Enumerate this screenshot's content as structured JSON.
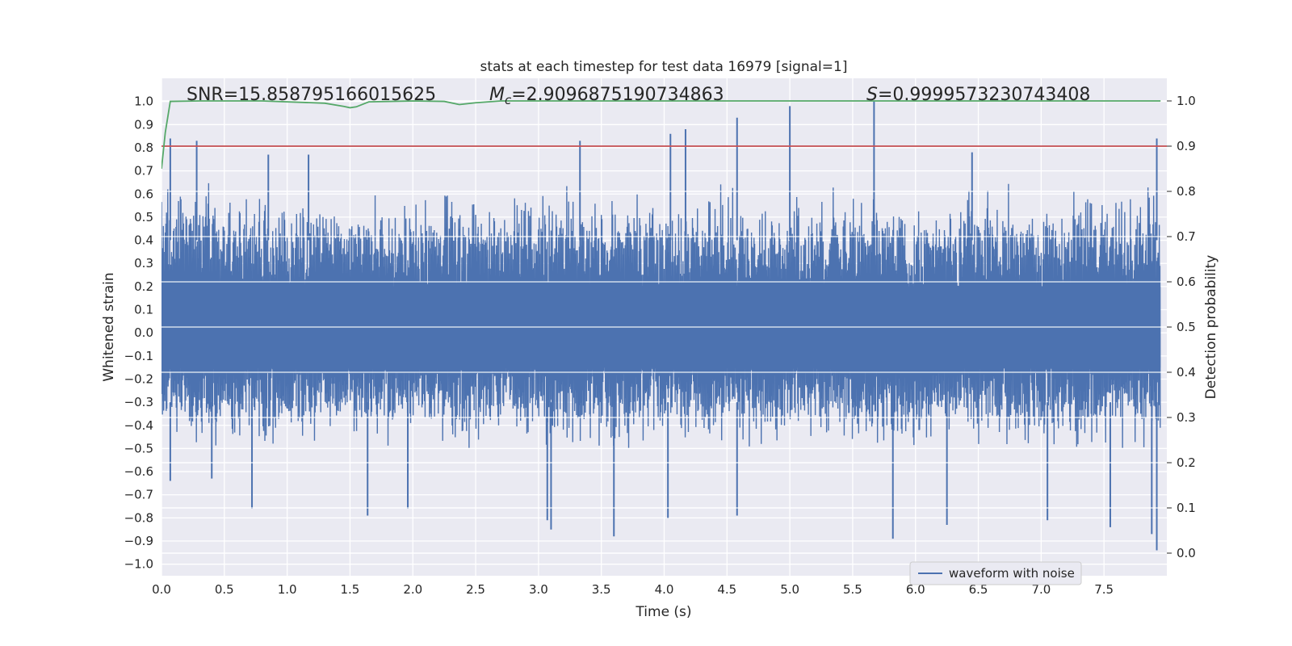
{
  "chart_data": {
    "type": "line",
    "title": "stats at each timestep for test data 16979 [signal=1]",
    "xlabel": "Time (s)",
    "ylabel": "Whitened strain",
    "y2label": "Detection probability",
    "xlim": [
      0.0,
      8.0
    ],
    "ylim": [
      -1.05,
      1.1
    ],
    "y2lim": [
      -0.05,
      1.05
    ],
    "xticks": [
      "0.0",
      "0.5",
      "1.0",
      "1.5",
      "2.0",
      "2.5",
      "3.0",
      "3.5",
      "4.0",
      "4.5",
      "5.0",
      "5.5",
      "6.0",
      "6.5",
      "7.0",
      "7.5"
    ],
    "yticks": [
      "1.0",
      "0.9",
      "0.8",
      "0.7",
      "0.6",
      "0.5",
      "0.4",
      "0.3",
      "0.2",
      "0.1",
      "0.0",
      "−0.1",
      "−0.2",
      "−0.3",
      "−0.4",
      "−0.5",
      "−0.6",
      "−0.7",
      "−0.8",
      "−0.9",
      "−1.0"
    ],
    "y2ticks": [
      "1.0",
      "0.9",
      "0.8",
      "0.7",
      "0.6",
      "0.5",
      "0.4",
      "0.3",
      "0.2",
      "0.1",
      "0.0"
    ],
    "grid": true,
    "legend_position": "lower-right",
    "legend": [
      "waveform with noise"
    ],
    "annotations": [
      {
        "text": "SNR=15.858795166015625",
        "x": 0.2,
        "y": 1.03
      },
      {
        "text_prefix": "M",
        "text_sub": "c",
        "text_suffix": "=2.9096875190734863",
        "x": 2.6,
        "y": 1.03
      },
      {
        "text_prefix": "S",
        "text_suffix": "=0.9999573230743408",
        "x": 5.6,
        "y": 1.03
      }
    ],
    "series": [
      {
        "name": "waveform with noise",
        "axis": "left",
        "color": "#4c72b0",
        "envelope_x": [
          0.0,
          0.25,
          0.5,
          0.75,
          1.0,
          1.25,
          1.5,
          1.75,
          2.0,
          2.25,
          2.5,
          2.75,
          3.0,
          3.25,
          3.5,
          3.75,
          4.0,
          4.25,
          4.5,
          4.75,
          5.0,
          5.25,
          5.5,
          5.75,
          6.0,
          6.25,
          6.5,
          6.75,
          7.0,
          7.25,
          7.5,
          7.75,
          7.95
        ],
        "envelope_upper": [
          0.6,
          0.65,
          0.6,
          0.55,
          0.58,
          0.6,
          0.55,
          0.6,
          0.55,
          0.55,
          0.58,
          0.6,
          0.6,
          0.62,
          0.55,
          0.55,
          0.6,
          0.6,
          0.62,
          0.55,
          0.6,
          0.58,
          0.6,
          0.58,
          0.55,
          0.55,
          0.58,
          0.6,
          0.55,
          0.6,
          0.6,
          0.62,
          0.6
        ],
        "envelope_lower": [
          -0.4,
          -0.45,
          -0.45,
          -0.45,
          -0.45,
          -0.45,
          -0.4,
          -0.45,
          -0.4,
          -0.45,
          -0.45,
          -0.4,
          -0.45,
          -0.45,
          -0.45,
          -0.45,
          -0.4,
          -0.45,
          -0.45,
          -0.45,
          -0.4,
          -0.45,
          -0.45,
          -0.45,
          -0.45,
          -0.4,
          -0.45,
          -0.45,
          -0.45,
          -0.45,
          -0.45,
          -0.45,
          -0.45
        ],
        "spikes": [
          {
            "x": 0.07,
            "y": 0.84
          },
          {
            "x": 0.28,
            "y": 0.83
          },
          {
            "x": 0.85,
            "y": 0.77
          },
          {
            "x": 1.17,
            "y": 0.77
          },
          {
            "x": 3.33,
            "y": 0.83
          },
          {
            "x": 4.05,
            "y": 0.86
          },
          {
            "x": 4.17,
            "y": 0.88
          },
          {
            "x": 4.58,
            "y": 0.93
          },
          {
            "x": 5.0,
            "y": 0.98
          },
          {
            "x": 5.67,
            "y": 1.0
          },
          {
            "x": 6.45,
            "y": 0.78
          },
          {
            "x": 7.92,
            "y": 0.84
          },
          {
            "x": 0.07,
            "y": -0.64
          },
          {
            "x": 0.4,
            "y": -0.63
          },
          {
            "x": 0.72,
            "y": -0.76
          },
          {
            "x": 1.64,
            "y": -0.79
          },
          {
            "x": 1.96,
            "y": -0.76
          },
          {
            "x": 3.07,
            "y": -0.81
          },
          {
            "x": 3.1,
            "y": -0.85
          },
          {
            "x": 3.6,
            "y": -0.88
          },
          {
            "x": 4.03,
            "y": -0.8
          },
          {
            "x": 4.58,
            "y": -0.79
          },
          {
            "x": 5.82,
            "y": -0.89
          },
          {
            "x": 6.25,
            "y": -0.83
          },
          {
            "x": 7.05,
            "y": -0.81
          },
          {
            "x": 7.55,
            "y": -0.84
          },
          {
            "x": 7.88,
            "y": -0.87
          },
          {
            "x": 7.92,
            "y": -0.94
          }
        ]
      },
      {
        "name": "detection probability",
        "axis": "right",
        "color": "#55a868",
        "x": [
          0.0,
          0.03,
          0.07,
          0.3,
          0.8,
          1.3,
          1.45,
          1.5,
          1.55,
          1.65,
          2.0,
          2.25,
          2.37,
          2.5,
          2.7,
          3.0,
          4.0,
          5.0,
          6.0,
          7.0,
          7.95
        ],
        "y": [
          0.85,
          0.93,
          0.999,
          1.0,
          1.0,
          0.995,
          0.988,
          0.985,
          0.987,
          0.998,
          1.0,
          0.999,
          0.992,
          0.996,
          1.0,
          1.0,
          1.0,
          1.0,
          1.0,
          1.0,
          1.0
        ]
      },
      {
        "name": "threshold",
        "axis": "right",
        "color": "#c44e52",
        "x": [
          0.0,
          8.0
        ],
        "y": [
          0.9,
          0.9
        ]
      }
    ]
  }
}
